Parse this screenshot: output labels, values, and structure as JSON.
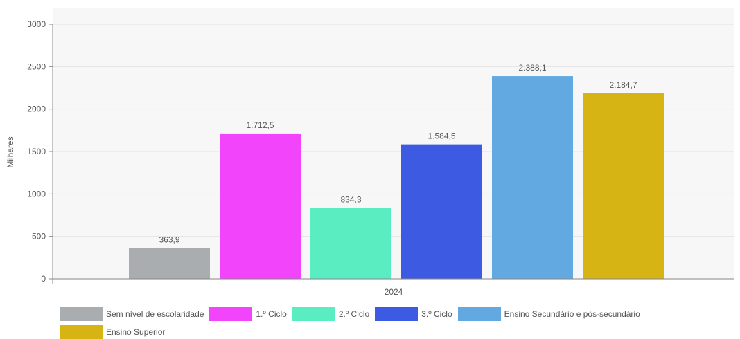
{
  "chart_data": {
    "type": "bar",
    "ylabel": "Milhares",
    "xlabel": "",
    "categories": [
      "2024"
    ],
    "ylim": [
      0,
      3000
    ],
    "yticks": [
      0,
      500,
      1000,
      1500,
      2000,
      2500,
      3000
    ],
    "grid": true,
    "legend_position": "bottom",
    "series": [
      {
        "name": "Sem nível de escolaridade",
        "values": [
          363.9
        ],
        "label": "363,9",
        "color": "#a9adb0"
      },
      {
        "name": "1.º Ciclo",
        "values": [
          1712.5
        ],
        "label": "1.712,5",
        "color": "#f244fa"
      },
      {
        "name": "2.º Ciclo",
        "values": [
          834.3
        ],
        "label": "834,3",
        "color": "#5aedc2"
      },
      {
        "name": "3.º Ciclo",
        "values": [
          1584.5
        ],
        "label": "1.584,5",
        "color": "#3d5be2"
      },
      {
        "name": "Ensino Secundário e pós-secundário",
        "values": [
          2388.1
        ],
        "label": "2.388,1",
        "color": "#62a9e1"
      },
      {
        "name": "Ensino Superior",
        "values": [
          2184.7
        ],
        "label": "2.184,7",
        "color": "#d6b414"
      }
    ]
  }
}
